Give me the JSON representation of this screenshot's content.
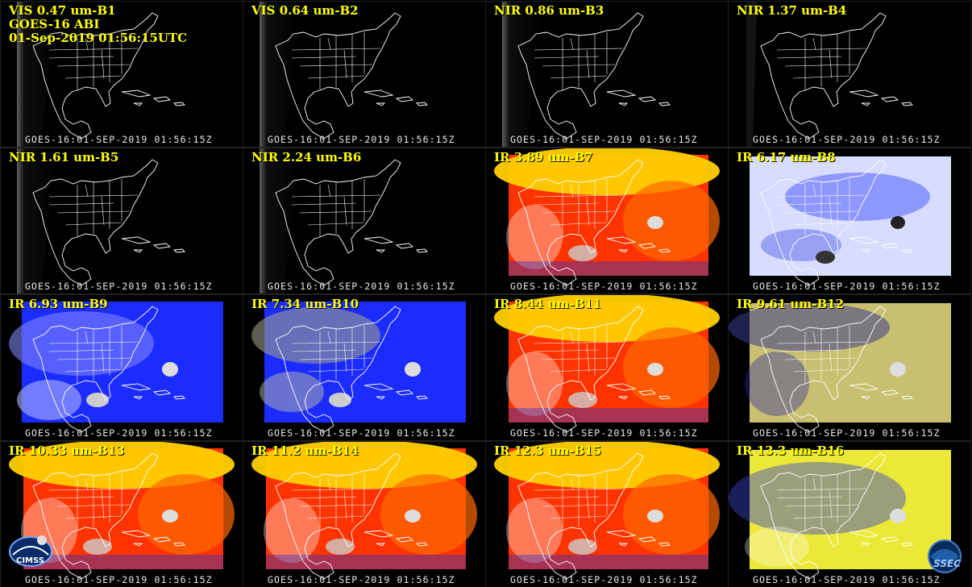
{
  "title_lines": [
    "GOES-16 ABI",
    "01-Sep-2019 01:56:15UTC"
  ],
  "footer": "GOES-16:01-SEP-2019 01:56:15Z",
  "logos": {
    "left": "CIMSS",
    "right": "SSEC"
  },
  "panels": [
    {
      "label": "VIS 0.47 um-B1",
      "style": "vis"
    },
    {
      "label": "VIS 0.64 um-B2",
      "style": "vis"
    },
    {
      "label": "NIR 0.86 um-B3",
      "style": "vis"
    },
    {
      "label": "NIR 1.37 um-B4",
      "style": "dark"
    },
    {
      "label": "NIR 1.61 um-B5",
      "style": "vis"
    },
    {
      "label": "NIR 2.24 um-B6",
      "style": "vis"
    },
    {
      "label": "IR 3.89 um-B7",
      "style": "warm"
    },
    {
      "label": "IR 6.17 um-B8",
      "style": "wv-light"
    },
    {
      "label": "IR 6.93 um-B9",
      "style": "wv-blue"
    },
    {
      "label": "IR 7.34 um-B10",
      "style": "wv-blue2"
    },
    {
      "label": "IR 8.44 um-B11",
      "style": "warm2"
    },
    {
      "label": "IR 9.61 um-B12",
      "style": "ozone"
    },
    {
      "label": "IR 10.33 um-B13",
      "style": "warm"
    },
    {
      "label": "IR 11.2 um-B14",
      "style": "warm"
    },
    {
      "label": "IR 12.3 um-B15",
      "style": "warm"
    },
    {
      "label": "IR 13.3 um-B16",
      "style": "co2"
    }
  ],
  "colors": {
    "label": "#ffff00",
    "map_lines": "#ffffff",
    "warm_low": "#ff2200",
    "warm_high": "#ffe000",
    "wv_blue": "#1a2cff",
    "wv_light": "#c8ccff",
    "ozone": "#c8c070",
    "co2": "#ece838"
  }
}
